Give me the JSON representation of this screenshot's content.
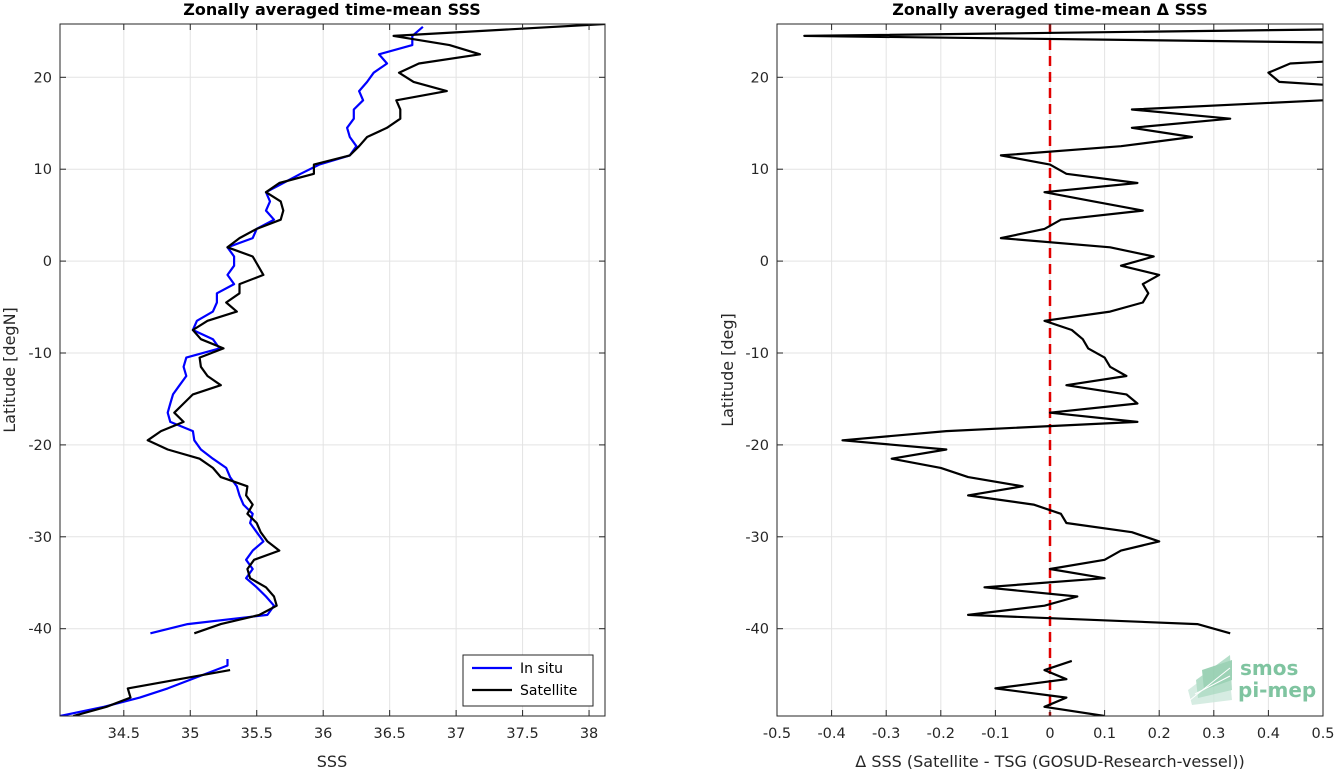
{
  "chart_data": [
    {
      "type": "line",
      "title": "Zonally averaged time-mean SSS",
      "xlabel": "SSS",
      "ylabel": "Latitude [degN]",
      "xlim": [
        34.02,
        38.12
      ],
      "ylim": [
        -49.5,
        25.8
      ],
      "xticks": [
        34.5,
        35,
        35.5,
        36,
        36.5,
        37,
        37.5,
        38
      ],
      "xtick_labels": [
        "34.5",
        "35",
        "35.5",
        "36",
        "36.5",
        "37",
        "37.5",
        "38"
      ],
      "yticks": [
        -40,
        -30,
        -20,
        -10,
        0,
        10,
        20
      ],
      "ytick_labels": [
        "-40",
        "-30",
        "-20",
        "-10",
        "0",
        "10",
        "20"
      ],
      "grid": true,
      "legend_position": "bottom-right",
      "series": [
        {
          "name": "In situ",
          "color": "#0000ff",
          "segments": [
            [
              [
                36.75,
                25.5
              ],
              [
                36.67,
                24.5
              ],
              [
                36.67,
                23.5
              ],
              [
                36.42,
                22.5
              ],
              [
                36.48,
                21.5
              ],
              [
                36.38,
                20.5
              ],
              [
                36.33,
                19.5
              ],
              [
                36.27,
                18.5
              ],
              [
                36.3,
                17.5
              ],
              [
                36.23,
                16.5
              ],
              [
                36.23,
                15.5
              ],
              [
                36.18,
                14.5
              ],
              [
                36.2,
                13.5
              ],
              [
                36.25,
                12.5
              ],
              [
                36.2,
                11.5
              ],
              [
                35.97,
                10.5
              ],
              [
                35.83,
                9.5
              ],
              [
                35.7,
                8.5
              ],
              [
                35.57,
                7.5
              ],
              [
                35.6,
                6.5
              ],
              [
                35.57,
                5.5
              ],
              [
                35.63,
                4.5
              ],
              [
                35.5,
                3.5
              ],
              [
                35.47,
                2.5
              ],
              [
                35.28,
                1.5
              ],
              [
                35.33,
                0.5
              ],
              [
                35.33,
                -0.5
              ],
              [
                35.28,
                -1.5
              ],
              [
                35.33,
                -2.5
              ],
              [
                35.2,
                -3.5
              ],
              [
                35.2,
                -4.5
              ],
              [
                35.17,
                -5.5
              ],
              [
                35.05,
                -6.5
              ],
              [
                35.02,
                -7.5
              ],
              [
                35.17,
                -8.5
              ],
              [
                35.22,
                -9.5
              ],
              [
                34.97,
                -10.5
              ],
              [
                34.95,
                -11.5
              ],
              [
                34.97,
                -12.5
              ],
              [
                34.92,
                -13.5
              ],
              [
                34.87,
                -14.5
              ],
              [
                34.85,
                -15.5
              ],
              [
                34.83,
                -16.5
              ],
              [
                34.85,
                -17.5
              ],
              [
                35.02,
                -18.5
              ],
              [
                35.03,
                -19.5
              ],
              [
                35.08,
                -20.5
              ],
              [
                35.17,
                -21.5
              ],
              [
                35.27,
                -22.5
              ],
              [
                35.3,
                -23.5
              ],
              [
                35.35,
                -24.5
              ],
              [
                35.37,
                -25.5
              ],
              [
                35.4,
                -26.5
              ],
              [
                35.47,
                -27.5
              ],
              [
                35.45,
                -28.5
              ],
              [
                35.5,
                -29.5
              ],
              [
                35.55,
                -30.5
              ],
              [
                35.47,
                -31.5
              ],
              [
                35.42,
                -32.5
              ],
              [
                35.47,
                -33.5
              ],
              [
                35.42,
                -34.5
              ],
              [
                35.5,
                -35.5
              ],
              [
                35.57,
                -36.5
              ],
              [
                35.63,
                -37.5
              ],
              [
                35.58,
                -38.5
              ],
              [
                34.98,
                -39.5
              ],
              [
                34.7,
                -40.5
              ]
            ],
            [
              [
                35.28,
                -43.3
              ],
              [
                35.28,
                -44.0
              ],
              [
                34.83,
                -46.5
              ],
              [
                34.62,
                -47.5
              ],
              [
                34.35,
                -48.5
              ],
              [
                34.02,
                -49.5
              ]
            ]
          ]
        },
        {
          "name": "Satellite",
          "color": "#000000",
          "segments": [
            [
              [
                38.12,
                25.8
              ],
              [
                36.53,
                24.5
              ],
              [
                36.95,
                23.5
              ],
              [
                37.18,
                22.5
              ],
              [
                36.72,
                21.5
              ],
              [
                36.57,
                20.5
              ],
              [
                36.68,
                19.5
              ],
              [
                36.93,
                18.5
              ],
              [
                36.55,
                17.5
              ],
              [
                36.58,
                16.5
              ],
              [
                36.58,
                15.5
              ],
              [
                36.48,
                14.5
              ],
              [
                36.33,
                13.5
              ],
              [
                36.27,
                12.5
              ],
              [
                36.2,
                11.5
              ],
              [
                35.93,
                10.5
              ],
              [
                35.93,
                9.5
              ],
              [
                35.67,
                8.5
              ],
              [
                35.57,
                7.5
              ],
              [
                35.68,
                6.5
              ],
              [
                35.7,
                5.5
              ],
              [
                35.68,
                4.5
              ],
              [
                35.5,
                3.5
              ],
              [
                35.37,
                2.5
              ],
              [
                35.28,
                1.5
              ],
              [
                35.47,
                0.5
              ],
              [
                35.55,
                -1.5
              ],
              [
                35.37,
                -2.5
              ],
              [
                35.37,
                -3.5
              ],
              [
                35.27,
                -4.5
              ],
              [
                35.35,
                -5.5
              ],
              [
                35.13,
                -6.5
              ],
              [
                35.02,
                -7.5
              ],
              [
                35.08,
                -8.5
              ],
              [
                35.25,
                -9.5
              ],
              [
                35.07,
                -10.5
              ],
              [
                35.08,
                -11.5
              ],
              [
                35.13,
                -12.5
              ],
              [
                35.23,
                -13.5
              ],
              [
                35.02,
                -14.5
              ],
              [
                34.95,
                -15.5
              ],
              [
                34.88,
                -16.5
              ],
              [
                34.95,
                -17.5
              ],
              [
                34.78,
                -18.5
              ],
              [
                34.68,
                -19.5
              ],
              [
                34.83,
                -20.5
              ],
              [
                35.07,
                -21.5
              ],
              [
                35.17,
                -22.5
              ],
              [
                35.23,
                -23.5
              ],
              [
                35.43,
                -24.5
              ],
              [
                35.42,
                -25.5
              ],
              [
                35.47,
                -26.5
              ],
              [
                35.43,
                -27.5
              ],
              [
                35.5,
                -28.5
              ],
              [
                35.53,
                -29.5
              ],
              [
                35.58,
                -30.5
              ],
              [
                35.67,
                -31.5
              ],
              [
                35.48,
                -32.5
              ],
              [
                35.43,
                -33.5
              ],
              [
                35.45,
                -34.5
              ],
              [
                35.57,
                -35.5
              ],
              [
                35.63,
                -36.5
              ],
              [
                35.65,
                -37.5
              ],
              [
                35.52,
                -38.5
              ],
              [
                35.23,
                -39.5
              ],
              [
                35.03,
                -40.5
              ]
            ],
            [
              [
                35.3,
                -44.5
              ],
              [
                34.53,
                -46.5
              ],
              [
                34.55,
                -47.5
              ],
              [
                34.37,
                -48.5
              ],
              [
                34.12,
                -49.5
              ]
            ]
          ]
        }
      ]
    },
    {
      "type": "line",
      "title": "Zonally averaged time-mean Δ SSS",
      "xlabel": "Δ SSS (Satellite - TSG (GOSUD-Research-vessel))",
      "ylabel": "Latitude [deg]",
      "xlim": [
        -0.5,
        0.5
      ],
      "ylim": [
        -49.5,
        25.8
      ],
      "xticks": [
        -0.5,
        -0.4,
        -0.3,
        -0.2,
        -0.1,
        0,
        0.1,
        0.2,
        0.3,
        0.4,
        0.5
      ],
      "xtick_labels": [
        "-0.5",
        "-0.4",
        "-0.3",
        "-0.2",
        "-0.1",
        "0",
        "0.1",
        "0.2",
        "0.3",
        "0.4",
        "0.5"
      ],
      "yticks": [
        -40,
        -30,
        -20,
        -10,
        0,
        10,
        20
      ],
      "ytick_labels": [
        "-40",
        "-30",
        "-20",
        "-10",
        "0",
        "10",
        "20"
      ],
      "grid": true,
      "zero_line": {
        "x": 0,
        "color": "#e00000",
        "style": "dashed"
      },
      "series": [
        {
          "color": "#000000",
          "segments": [
            [
              [
                0.5,
                25.2
              ],
              [
                -0.45,
                24.5
              ],
              [
                0.5,
                23.8
              ]
            ],
            [
              [
                0.5,
                21.7
              ],
              [
                0.44,
                21.5
              ],
              [
                0.4,
                20.5
              ],
              [
                0.42,
                19.5
              ],
              [
                0.5,
                19.2
              ]
            ],
            [
              [
                0.5,
                17.5
              ],
              [
                0.15,
                16.5
              ],
              [
                0.33,
                15.5
              ],
              [
                0.15,
                14.5
              ],
              [
                0.26,
                13.5
              ],
              [
                0.13,
                12.5
              ],
              [
                -0.09,
                11.5
              ],
              [
                0.0,
                10.5
              ],
              [
                0.03,
                9.5
              ],
              [
                0.16,
                8.5
              ],
              [
                -0.01,
                7.5
              ],
              [
                0.08,
                6.5
              ],
              [
                0.17,
                5.5
              ],
              [
                0.02,
                4.5
              ],
              [
                -0.01,
                3.5
              ],
              [
                -0.09,
                2.5
              ],
              [
                0.11,
                1.5
              ],
              [
                0.19,
                0.5
              ],
              [
                0.13,
                -0.5
              ],
              [
                0.2,
                -1.5
              ],
              [
                0.17,
                -2.5
              ],
              [
                0.18,
                -3.5
              ],
              [
                0.17,
                -4.5
              ],
              [
                0.11,
                -5.5
              ],
              [
                -0.01,
                -6.5
              ],
              [
                0.04,
                -7.5
              ],
              [
                0.06,
                -8.5
              ],
              [
                0.07,
                -9.5
              ],
              [
                0.1,
                -10.5
              ],
              [
                0.11,
                -11.5
              ],
              [
                0.14,
                -12.5
              ],
              [
                0.03,
                -13.5
              ],
              [
                0.14,
                -14.5
              ],
              [
                0.16,
                -15.5
              ],
              [
                0.0,
                -16.5
              ],
              [
                0.16,
                -17.5
              ],
              [
                -0.19,
                -18.5
              ],
              [
                -0.38,
                -19.5
              ],
              [
                -0.19,
                -20.5
              ],
              [
                -0.29,
                -21.5
              ],
              [
                -0.2,
                -22.5
              ],
              [
                -0.15,
                -23.5
              ],
              [
                -0.05,
                -24.5
              ],
              [
                -0.15,
                -25.5
              ],
              [
                -0.03,
                -26.5
              ],
              [
                0.02,
                -27.5
              ],
              [
                0.03,
                -28.5
              ],
              [
                0.15,
                -29.5
              ],
              [
                0.2,
                -30.5
              ],
              [
                0.13,
                -31.5
              ],
              [
                0.1,
                -32.5
              ],
              [
                0.0,
                -33.5
              ],
              [
                0.1,
                -34.5
              ],
              [
                -0.12,
                -35.5
              ],
              [
                0.05,
                -36.5
              ],
              [
                -0.01,
                -37.5
              ],
              [
                -0.15,
                -38.5
              ],
              [
                0.27,
                -39.5
              ],
              [
                0.33,
                -40.5
              ]
            ],
            [
              [
                0.04,
                -43.5
              ],
              [
                -0.01,
                -44.5
              ],
              [
                0.03,
                -45.5
              ],
              [
                -0.1,
                -46.5
              ],
              [
                0.03,
                -47.5
              ],
              [
                -0.01,
                -48.5
              ],
              [
                0.1,
                -49.5
              ]
            ]
          ]
        }
      ]
    }
  ],
  "legend": {
    "items": [
      {
        "label": "In situ",
        "color": "#0000ff"
      },
      {
        "label": "Satellite",
        "color": "#000000"
      }
    ]
  },
  "logo": {
    "line1": "smos",
    "line2": "pi-mep"
  }
}
